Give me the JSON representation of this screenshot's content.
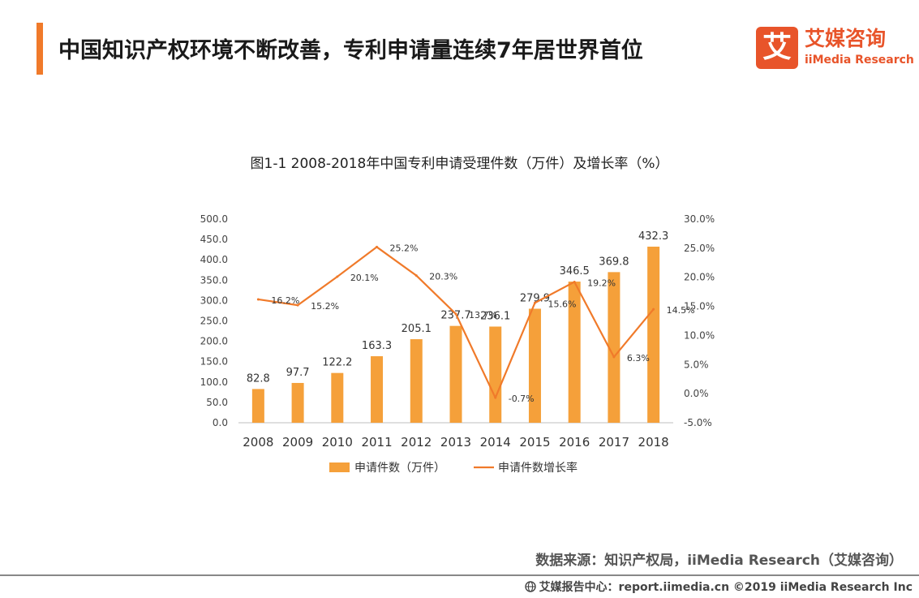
{
  "page": {
    "title": "中国知识产权环境不断改善，专利申请量连续7年居世界首位",
    "logo_cn": "艾媒咨询",
    "logo_en": "iiMedia Research",
    "logo_glyph": "艾",
    "source": "数据来源：知识产权局，iiMedia Research（艾媒咨询）",
    "footer": "艾媒报告中心：report.iimedia.cn ©2019 iiMedia Research Inc",
    "accent_color": "#f07a2a",
    "brand_color": "#e8542a",
    "footer_icon": "globe-icon"
  },
  "chart_data": {
    "type": "bar",
    "title": "图1-1 2008-2018年中国专利申请受理件数（万件）及增长率（%）",
    "categories": [
      "2008",
      "2009",
      "2010",
      "2011",
      "2012",
      "2013",
      "2014",
      "2015",
      "2016",
      "2017",
      "2018"
    ],
    "series": [
      {
        "name": "申请件数（万件）",
        "type": "bar",
        "axis": "left",
        "color": "#f5a03a",
        "values": [
          82.8,
          97.7,
          122.2,
          163.3,
          205.1,
          237.7,
          236.1,
          279.9,
          346.5,
          369.8,
          432.3
        ],
        "labels": [
          "82.8",
          "97.7",
          "122.2",
          "163.3",
          "205.1",
          "237.7",
          "236.1",
          "279.9",
          "346.5",
          "369.8",
          "432.3"
        ]
      },
      {
        "name": "申请件数增长率",
        "type": "line",
        "axis": "right",
        "color": "#f07a2a",
        "values": [
          16.2,
          15.2,
          20.1,
          25.2,
          20.3,
          13.7,
          -0.7,
          15.6,
          19.2,
          6.3,
          14.5
        ],
        "labels": [
          "16.2%",
          "15.2%",
          "20.1%",
          "25.2%",
          "20.3%",
          "13.7%",
          "-0.7%",
          "15.6%",
          "19.2%",
          "6.3%",
          "14.5%"
        ]
      }
    ],
    "left_axis": {
      "min": 0,
      "max": 500,
      "ticks": [
        "0.0",
        "50.0",
        "100.0",
        "150.0",
        "200.0",
        "250.0",
        "300.0",
        "350.0",
        "400.0",
        "450.0",
        "500.0"
      ]
    },
    "right_axis": {
      "min": -5,
      "max": 30,
      "ticks": [
        "-5.0%",
        "0.0%",
        "5.0%",
        "10.0%",
        "15.0%",
        "20.0%",
        "25.0%",
        "30.0%"
      ]
    },
    "grid": false,
    "legend_position": "bottom"
  }
}
